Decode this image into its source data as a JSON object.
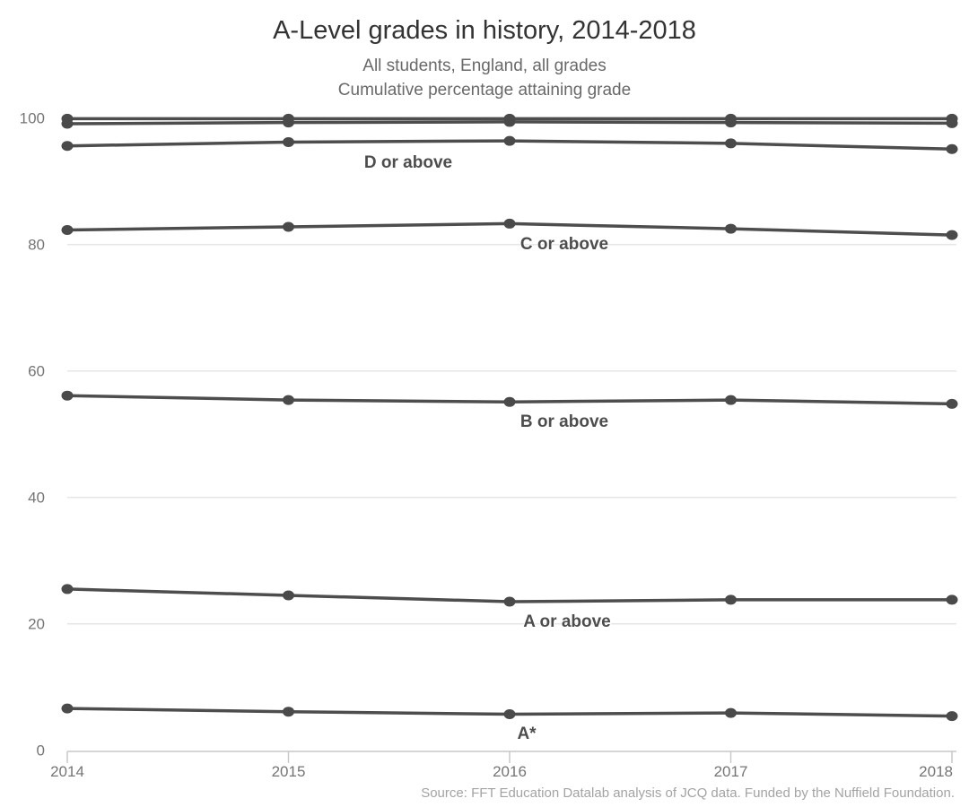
{
  "chart_data": {
    "type": "line",
    "title": "A-Level grades in history, 2014-2018",
    "subtitle_lines": [
      "All students, England, all grades",
      "Cumulative percentage attaining grade"
    ],
    "x": [
      2014,
      2015,
      2016,
      2017,
      2018
    ],
    "xlabel": "",
    "ylabel": "",
    "ylim": [
      0,
      100
    ],
    "yticks": [
      0,
      20,
      40,
      60,
      80,
      100
    ],
    "grid": "horizontal",
    "legend": "inline-labels",
    "series": [
      {
        "label": "",
        "values": [
          99.9,
          99.9,
          99.9,
          99.9,
          99.9
        ]
      },
      {
        "label": "",
        "values": [
          99.1,
          99.3,
          99.4,
          99.3,
          99.2
        ]
      },
      {
        "label": "D or above",
        "values": [
          95.6,
          96.2,
          96.4,
          96.0,
          95.1
        ]
      },
      {
        "label": "C or above",
        "values": [
          82.3,
          82.8,
          83.3,
          82.5,
          81.5
        ]
      },
      {
        "label": "B or above",
        "values": [
          56.1,
          55.4,
          55.1,
          55.4,
          54.8
        ]
      },
      {
        "label": "A or above",
        "values": [
          25.5,
          24.5,
          23.5,
          23.8,
          23.8
        ]
      },
      {
        "label": "A*",
        "values": [
          6.6,
          6.1,
          5.7,
          5.9,
          5.4
        ]
      }
    ],
    "source_note": "Source: FFT Education Datalab analysis of JCQ data. Funded by the Nuffield Foundation.",
    "colors": {
      "line": "#4d4d4d",
      "marker": "#4a4a4a",
      "grid": "#e6e6e6",
      "axis": "#c9c9c9",
      "title": "#333333",
      "subtitle": "#696969",
      "tick_label": "#757575",
      "series_label": "#4d4d4d",
      "source": "#a3a3a3"
    }
  }
}
